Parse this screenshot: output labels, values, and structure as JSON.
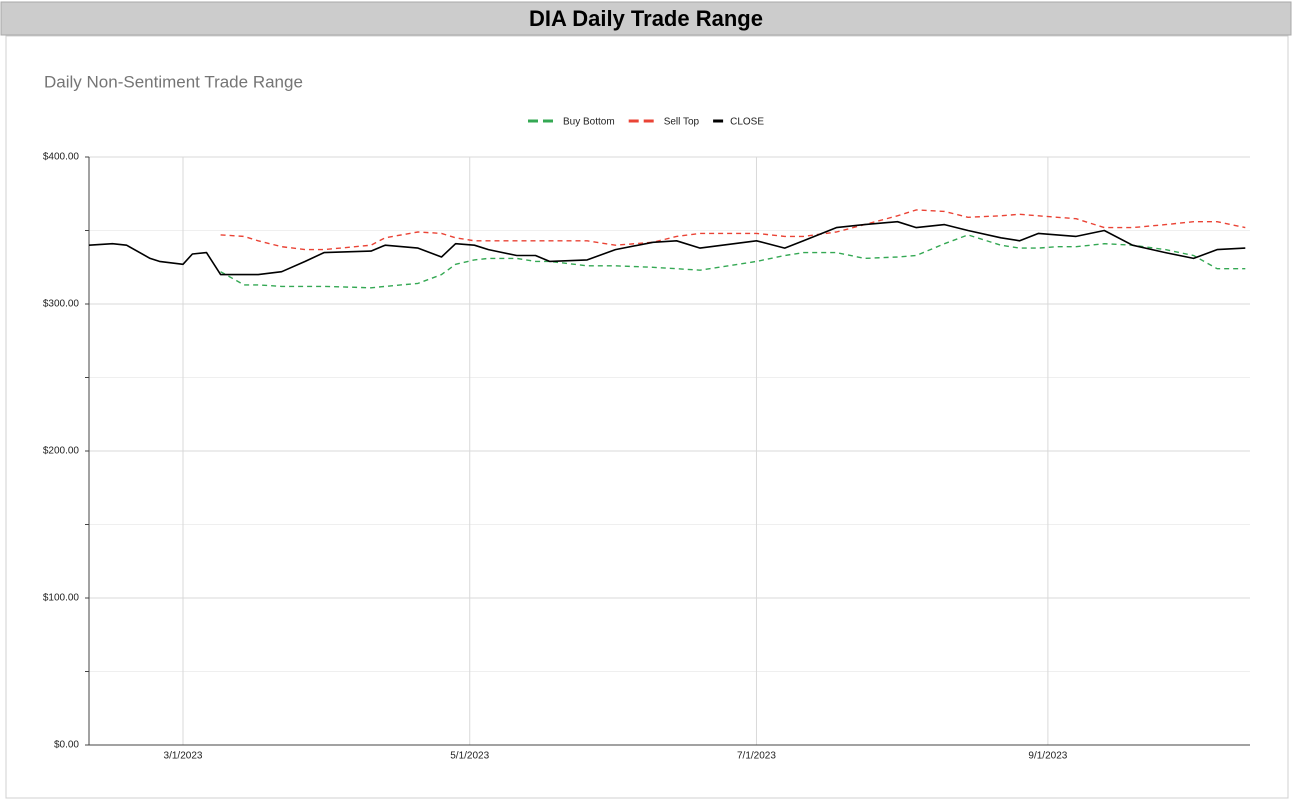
{
  "header": {
    "title": "DIA Daily Trade Range"
  },
  "chart_data": {
    "type": "line",
    "title": "Daily Non-Sentiment Trade Range",
    "x": [
      "2/9/2023",
      "2/14/2023",
      "2/17/2023",
      "2/22/2023",
      "2/24/2023",
      "3/1/2023",
      "3/3/2023",
      "3/6/2023",
      "3/9/2023",
      "3/14/2023",
      "3/17/2023",
      "3/22/2023",
      "3/27/2023",
      "3/31/2023",
      "4/10/2023",
      "4/13/2023",
      "4/20/2023",
      "4/25/2023",
      "4/28/2023",
      "5/2/2023",
      "5/5/2023",
      "5/11/2023",
      "5/15/2023",
      "5/18/2023",
      "5/26/2023",
      "6/1/2023",
      "6/9/2023",
      "6/14/2023",
      "6/19/2023",
      "7/1/2023",
      "7/7/2023",
      "7/11/2023",
      "7/18/2023",
      "7/24/2023",
      "7/31/2023",
      "8/4/2023",
      "8/10/2023",
      "8/15/2023",
      "8/22/2023",
      "8/26/2023",
      "8/30/2023",
      "9/3/2023",
      "9/7/2023",
      "9/13/2023",
      "9/19/2023",
      "9/26/2023",
      "10/2/2023",
      "10/7/2023",
      "10/13/2023"
    ],
    "series": [
      {
        "name": "Buy Bottom",
        "color": "#34a853",
        "style": "dashed",
        "values": [
          null,
          null,
          null,
          null,
          null,
          null,
          null,
          null,
          322,
          313,
          313,
          312,
          312,
          312,
          311,
          312,
          314,
          320,
          327,
          330,
          331,
          331,
          329,
          329,
          326,
          326,
          325,
          324,
          323,
          329,
          333,
          335,
          335,
          331,
          332,
          333,
          341,
          347,
          340,
          338,
          338,
          339,
          339,
          341,
          340,
          337,
          333,
          324,
          324
        ]
      },
      {
        "name": "Sell Top",
        "color": "#ea4335",
        "style": "dashed",
        "values": [
          null,
          null,
          null,
          null,
          null,
          null,
          null,
          null,
          347,
          346,
          343,
          339,
          337,
          337,
          340,
          345,
          349,
          348,
          345,
          343,
          343,
          343,
          343,
          343,
          343,
          340,
          342,
          346,
          348,
          348,
          346,
          346,
          349,
          354,
          360,
          364,
          363,
          359,
          360,
          361,
          360,
          359,
          358,
          352,
          352,
          354,
          356,
          356,
          352
        ]
      },
      {
        "name": "CLOSE",
        "color": "#000000",
        "style": "solid",
        "values": [
          340,
          341,
          340,
          331,
          329,
          327,
          334,
          335,
          320,
          320,
          320,
          322,
          329,
          335,
          336,
          340,
          338,
          332,
          341,
          340,
          337,
          333,
          333,
          329,
          330,
          337,
          342,
          343,
          338,
          343,
          338,
          343,
          352,
          354,
          356,
          352,
          354,
          350,
          345,
          343,
          348,
          347,
          346,
          350,
          340,
          335,
          331,
          337,
          338
        ]
      }
    ],
    "xlim": [
      "2/9/2023",
      "10/14/2023"
    ],
    "xticks": [
      "3/1/2023",
      "5/1/2023",
      "7/1/2023",
      "9/1/2023"
    ],
    "ylim": [
      0,
      400
    ],
    "yticks": [
      {
        "value": 0,
        "label": "$0.00"
      },
      {
        "value": 100,
        "label": "$100.00"
      },
      {
        "value": 200,
        "label": "$200.00"
      },
      {
        "value": 300,
        "label": "$300.00"
      },
      {
        "value": 400,
        "label": "$400.00"
      }
    ],
    "yminorticks": [
      50,
      150,
      250,
      350
    ],
    "grid": true,
    "legend": "top"
  }
}
